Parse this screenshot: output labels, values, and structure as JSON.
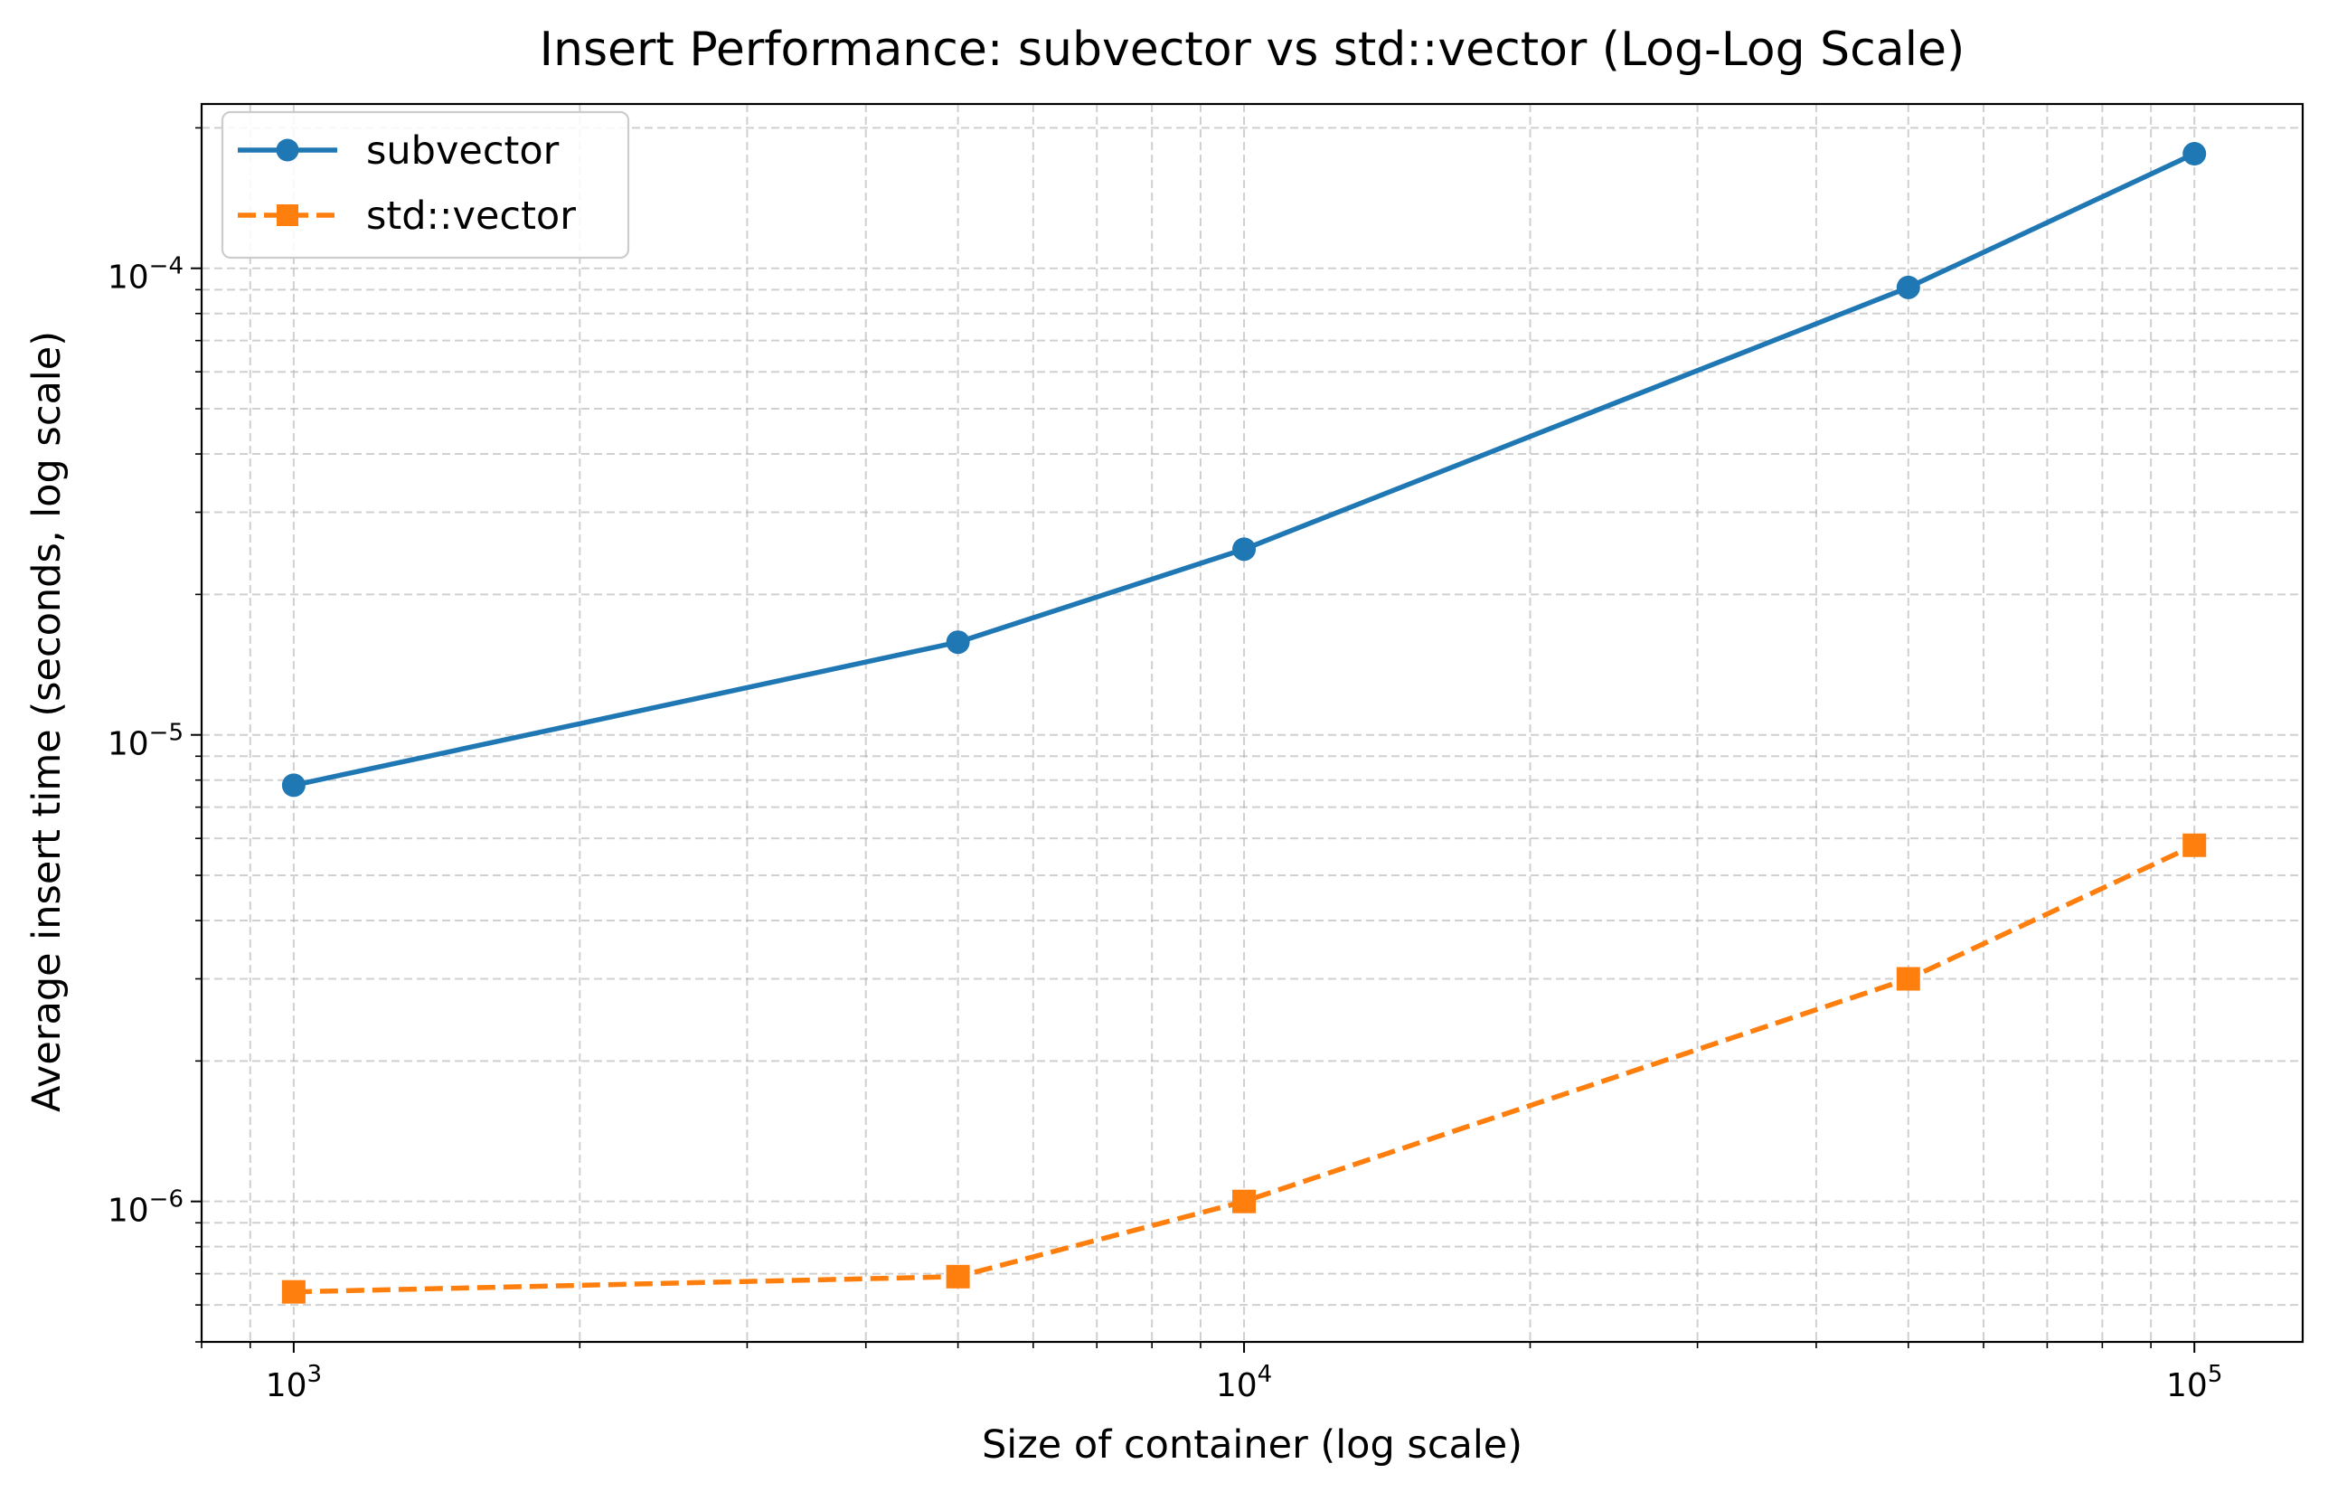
{
  "chart_data": {
    "type": "line",
    "title": "Insert Performance: subvector vs std::vector (Log-Log Scale)",
    "xlabel": "Size of container (log scale)",
    "ylabel": "Average insert time (seconds, log scale)",
    "xscale": "log",
    "yscale": "log",
    "xlim": [
      800,
      130000
    ],
    "ylim": [
      5e-07,
      0.000225
    ],
    "xticks": [
      1000,
      10000,
      100000
    ],
    "xtick_labels": [
      "10^3",
      "10^4",
      "10^5"
    ],
    "yticks": [
      1e-06,
      1e-05,
      0.0001
    ],
    "ytick_labels": [
      "10^-6",
      "10^-5",
      "10^-4"
    ],
    "grid": true,
    "legend_position": "top-left",
    "x": [
      1000,
      5000,
      10000,
      50000,
      100000
    ],
    "series": [
      {
        "name": "subvector",
        "values": [
          7.8e-06,
          1.58e-05,
          2.5e-05,
          9.1e-05,
          0.000176
        ],
        "color": "#1f77b4",
        "marker": "circle",
        "linestyle": "solid"
      },
      {
        "name": "std::vector",
        "values": [
          6.4e-07,
          6.9e-07,
          1e-06,
          3e-06,
          5.8e-06
        ],
        "color": "#ff7f0e",
        "marker": "square",
        "linestyle": "dashed"
      }
    ]
  }
}
